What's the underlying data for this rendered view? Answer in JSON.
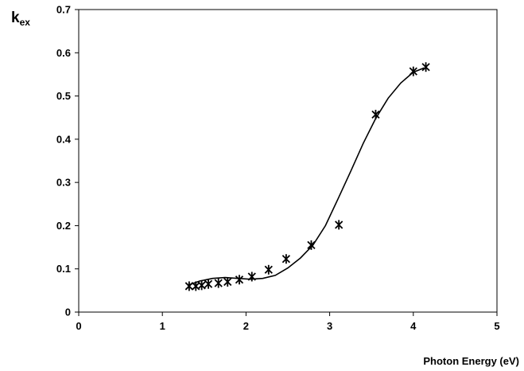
{
  "chart_data": {
    "type": "scatter",
    "xlabel": "Photon Energy (eV)",
    "ylabel": {
      "main": "k",
      "sub": "ex"
    },
    "xlim": [
      0,
      5
    ],
    "ylim": [
      0,
      0.7
    ],
    "x_ticks": [
      0,
      1,
      2,
      3,
      4,
      5
    ],
    "x_tick_labels": [
      "0",
      "1",
      "2",
      "3",
      "4",
      "5"
    ],
    "y_ticks": [
      0,
      0.1,
      0.2,
      0.3,
      0.4,
      0.5,
      0.6,
      0.7
    ],
    "y_tick_labels": [
      "0",
      "0.1",
      "0.2",
      "0.3",
      "0.4",
      "0.5",
      "0.6",
      "0.7"
    ],
    "grid": false,
    "legend": "none",
    "series": [
      {
        "kind": "markers",
        "marker": "asterisk",
        "x": [
          1.32,
          1.4,
          1.47,
          1.55,
          1.67,
          1.78,
          1.92,
          2.07,
          2.27,
          2.48,
          2.78,
          3.11,
          3.55,
          4.0,
          4.15
        ],
        "y": [
          0.06,
          0.06,
          0.062,
          0.065,
          0.067,
          0.07,
          0.075,
          0.082,
          0.098,
          0.123,
          0.155,
          0.202,
          0.457,
          0.557,
          0.567
        ]
      },
      {
        "kind": "line",
        "x": [
          1.32,
          1.45,
          1.6,
          1.75,
          1.9,
          2.05,
          2.2,
          2.35,
          2.5,
          2.65,
          2.8,
          2.95,
          3.1,
          3.25,
          3.4,
          3.55,
          3.7,
          3.85,
          4.0,
          4.13
        ],
        "y": [
          0.063,
          0.072,
          0.078,
          0.08,
          0.078,
          0.076,
          0.078,
          0.085,
          0.102,
          0.125,
          0.155,
          0.2,
          0.262,
          0.325,
          0.39,
          0.448,
          0.495,
          0.53,
          0.555,
          0.565
        ]
      }
    ],
    "colors": {
      "axis": "#000000",
      "markers": "#000000",
      "line": "#000000"
    }
  }
}
